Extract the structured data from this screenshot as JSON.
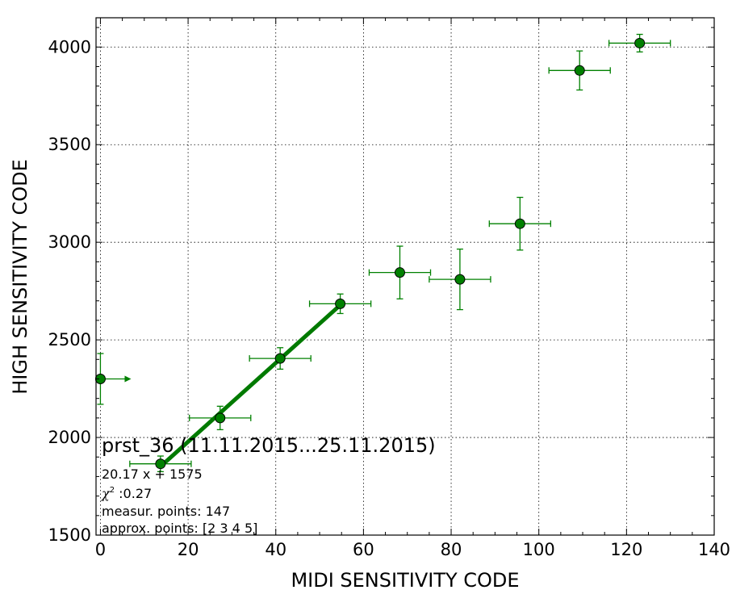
{
  "chart_data": {
    "type": "scatter",
    "xlabel": "MIDI SENSITIVITY CODE",
    "ylabel": "HIGH SENSITIVITY CODE",
    "xlim": [
      -1,
      140
    ],
    "ylim": [
      1500,
      4150
    ],
    "xticks": [
      0,
      20,
      40,
      60,
      80,
      100,
      120,
      140
    ],
    "yticks": [
      1500,
      2000,
      2500,
      3000,
      3500,
      4000
    ],
    "xtick_labels": [
      "0",
      "20",
      "40",
      "60",
      "80",
      "100",
      "120",
      "140"
    ],
    "ytick_labels": [
      "1500",
      "2000",
      "2500",
      "3000",
      "3500",
      "4000"
    ],
    "grid": true,
    "colors": {
      "series": "#008000",
      "fit": "#007a00",
      "frame": "#000000"
    },
    "points": [
      {
        "x": 0,
        "y": 2300,
        "xerr": 7,
        "yerr": 130,
        "x_arrow": true
      },
      {
        "x": 13.7,
        "y": 1865,
        "xerr": 7,
        "yerr": 40
      },
      {
        "x": 27.3,
        "y": 2100,
        "xerr": 7,
        "yerr": 60
      },
      {
        "x": 41,
        "y": 2405,
        "xerr": 7,
        "yerr": 55
      },
      {
        "x": 54.7,
        "y": 2685,
        "xerr": 7,
        "yerr": 50
      },
      {
        "x": 68.3,
        "y": 2845,
        "xerr": 7,
        "yerr": 135
      },
      {
        "x": 82,
        "y": 2810,
        "xerr": 7,
        "yerr": 155
      },
      {
        "x": 95.7,
        "y": 3095,
        "xerr": 7,
        "yerr": 135
      },
      {
        "x": 109.3,
        "y": 3880,
        "xerr": 7,
        "yerr": 100
      },
      {
        "x": 123,
        "y": 4020,
        "xerr": 7,
        "yerr": 45
      }
    ],
    "fit": {
      "slope": 20.17,
      "intercept": 1575,
      "x_range": [
        13.7,
        54.7
      ]
    },
    "annotation": {
      "title": "prst_36 (11.11.2015...25.11.2015)",
      "equation": "20.17 x + 1575",
      "chi_label": "χ",
      "chi_sup": "2",
      "chi_value": " :0.27",
      "measur_points": "measur. points: 147",
      "approx_points": "approx. points: [2 3 4 5]"
    }
  }
}
